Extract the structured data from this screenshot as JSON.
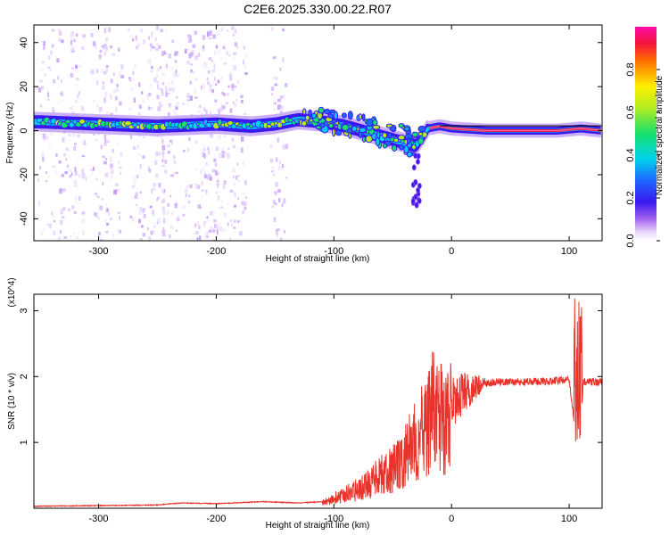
{
  "figure": {
    "title": "C2E6.2025.330.00.22.R07"
  },
  "chart_data": [
    {
      "type": "heatmap",
      "title": "C2E6.2025.330.00.22.R07",
      "xlabel": "Height of straight line (km)",
      "ylabel": "Frequency (Hz)",
      "xlim": [
        -355,
        128
      ],
      "ylim": [
        -50,
        48
      ],
      "xticks": [
        -300,
        -200,
        -100,
        0,
        100
      ],
      "xtick_labels": [
        "-300",
        "-200",
        "-100",
        "0",
        "100"
      ],
      "yticks": [
        -40,
        -20,
        0,
        20,
        40
      ],
      "ytick_labels": [
        "-40",
        "-20",
        "0",
        "20",
        "40"
      ],
      "colorbar": {
        "label": "Normalized spectral amplitude",
        "range": [
          0,
          1
        ],
        "ticks": [
          0.0,
          0.2,
          0.4,
          0.6,
          0.8
        ],
        "tick_labels": [
          "0.0",
          "0.2",
          "0.4",
          "0.6",
          "0.8"
        ],
        "colormap": "rainbow (violet-blue-cyan-green-yellow-red-magenta)"
      },
      "ridge": {
        "x": [
          -350,
          -300,
          -250,
          -200,
          -170,
          -150,
          -130,
          -110,
          -90,
          -70,
          -50,
          -30,
          -20,
          -10,
          0,
          30,
          60,
          90,
          110,
          128
        ],
        "y": [
          4,
          3,
          2,
          3,
          2,
          3,
          5,
          4,
          2,
          -1,
          -4,
          -7,
          1,
          2,
          1,
          0,
          0,
          0,
          1,
          0
        ]
      }
    },
    {
      "type": "line",
      "xlabel": "Height of straight line (km)",
      "ylabel": "SNR (10 * v/v)",
      "y_multiplier": "(x10^4)",
      "xlim": [
        -355,
        128
      ],
      "ylim": [
        0,
        3.25
      ],
      "xticks": [
        -300,
        -200,
        -100,
        0,
        100
      ],
      "xtick_labels": [
        "-300",
        "-200",
        "-100",
        "0",
        "100"
      ],
      "yticks": [
        1,
        2,
        3
      ],
      "ytick_labels": [
        "1",
        "2",
        "3"
      ],
      "series": [
        {
          "color": "#e8322a",
          "x": [
            -355,
            -300,
            -250,
            -230,
            -200,
            -160,
            -130,
            -110,
            -95,
            -80,
            -70,
            -60,
            -50,
            -40,
            -30,
            -20,
            -15,
            -10,
            -5,
            0,
            10,
            20,
            30,
            40,
            60,
            80,
            100,
            105,
            107,
            109,
            112,
            128
          ],
          "y": [
            0.03,
            0.04,
            0.05,
            0.08,
            0.07,
            0.1,
            0.08,
            0.1,
            0.2,
            0.3,
            0.4,
            0.55,
            0.65,
            0.85,
            1.1,
            1.4,
            1.65,
            1.5,
            1.4,
            1.55,
            1.75,
            1.85,
            1.9,
            1.92,
            1.92,
            1.93,
            1.95,
            1.2,
            3.2,
            0.9,
            1.92,
            1.92
          ]
        }
      ]
    }
  ]
}
